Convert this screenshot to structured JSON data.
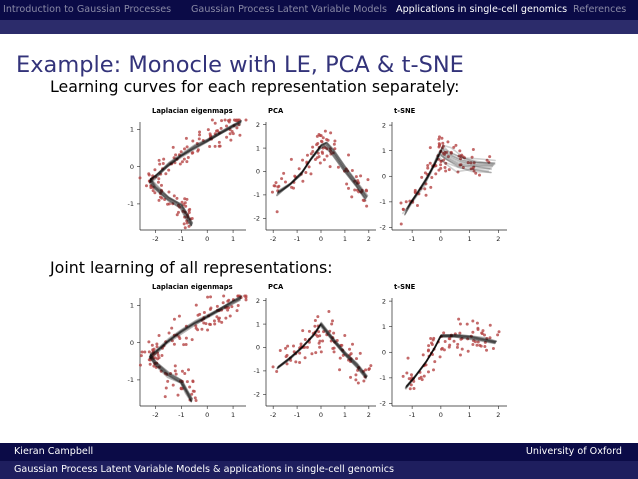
{
  "nav": {
    "items": [
      {
        "label": "Introduction to Gaussian Processes",
        "active": false
      },
      {
        "label": "Gaussian Process Latent Variable Models",
        "active": false
      },
      {
        "label": "Applications in single-cell genomics",
        "active": true
      },
      {
        "label": "References",
        "active": false
      }
    ]
  },
  "slide": {
    "title": "Example: Monocle with LE, PCA & t-SNE",
    "subtitle_1": "Learning curves for each representation separately:",
    "subtitle_2": "Joint learning of all representations:"
  },
  "footer": {
    "author": "Kieran Campbell",
    "affiliation": "University of Oxford",
    "talk_title": "Gaussian Process Latent Variable Models & applications in single-cell genomics"
  },
  "colors": {
    "nav_bg": "#0b0b47",
    "nav_inactive": "#8a8aa6",
    "nav_active": "#ffffff",
    "title": "#33337a",
    "point": "#b54545",
    "curve": "#000000"
  },
  "chart_data": [
    {
      "type": "scatter",
      "panel": "top",
      "title": "Laplacian eigenmaps",
      "x_ticks": [
        "-2",
        "-1",
        "0",
        "1"
      ],
      "y_ticks": [
        "1",
        "0",
        "-1"
      ],
      "xlim": [
        -2.6,
        1.5
      ],
      "ylim": [
        -1.7,
        1.25
      ],
      "curve": [
        [
          -2.2,
          -0.35
        ],
        [
          -2.0,
          -0.25
        ],
        [
          -1.5,
          0.05
        ],
        [
          -1.0,
          0.3
        ],
        [
          -0.5,
          0.52
        ],
        [
          0.0,
          0.7
        ],
        [
          0.5,
          0.9
        ],
        [
          1.0,
          1.1
        ],
        [
          1.3,
          1.2
        ]
      ],
      "curve2": [
        [
          -2.2,
          -0.35
        ],
        [
          -2.0,
          -0.55
        ],
        [
          -1.5,
          -0.85
        ],
        [
          -1.0,
          -1.05
        ],
        [
          -0.8,
          -1.3
        ],
        [
          -0.6,
          -1.55
        ]
      ],
      "curve_band": 0.06
    },
    {
      "type": "scatter",
      "panel": "top",
      "title": "PCA",
      "x_ticks": [
        "-2",
        "-1",
        "0",
        "1",
        "2"
      ],
      "y_ticks": [
        "2",
        "1",
        "0",
        "-1",
        "-2"
      ],
      "xlim": [
        -2.3,
        2.3
      ],
      "ylim": [
        -2.5,
        2.2
      ],
      "curve": [
        [
          -1.8,
          -0.9
        ],
        [
          -1.3,
          -0.55
        ],
        [
          -0.8,
          -0.05
        ],
        [
          -0.4,
          0.55
        ],
        [
          0.0,
          1.1
        ],
        [
          0.2,
          1.2
        ],
        [
          0.5,
          0.85
        ],
        [
          1.0,
          0.1
        ],
        [
          1.5,
          -0.55
        ],
        [
          1.9,
          -1.1
        ]
      ],
      "curve_band": 0.1
    },
    {
      "type": "scatter",
      "panel": "top",
      "title": "t-SNE",
      "x_ticks": [
        "-1",
        "0",
        "1",
        "2"
      ],
      "y_ticks": [
        "2",
        "1",
        "0",
        "-1",
        "-2"
      ],
      "xlim": [
        -1.7,
        2.3
      ],
      "ylim": [
        -2.1,
        2.2
      ],
      "curve": [
        [
          -1.2,
          -1.3
        ],
        [
          -0.9,
          -0.8
        ],
        [
          -0.5,
          -0.1
        ],
        [
          -0.2,
          0.5
        ],
        [
          0.0,
          1.0
        ],
        [
          0.2,
          0.8
        ],
        [
          0.7,
          0.55
        ],
        [
          1.2,
          0.45
        ],
        [
          1.8,
          0.4
        ]
      ],
      "curve_band": 0.25
    },
    {
      "type": "scatter",
      "panel": "bottom",
      "title": "Laplacian eigenmaps",
      "x_ticks": [
        "-2",
        "-1",
        "0",
        "1"
      ],
      "y_ticks": [
        "1",
        "0",
        "-1"
      ],
      "xlim": [
        -2.6,
        1.5
      ],
      "ylim": [
        -1.7,
        1.25
      ],
      "curve": [
        [
          -2.2,
          -0.35
        ],
        [
          -2.0,
          -0.25
        ],
        [
          -1.5,
          0.05
        ],
        [
          -1.0,
          0.3
        ],
        [
          -0.5,
          0.52
        ],
        [
          0.0,
          0.7
        ],
        [
          0.5,
          0.9
        ],
        [
          1.0,
          1.1
        ],
        [
          1.3,
          1.2
        ]
      ],
      "curve2": [
        [
          -2.2,
          -0.35
        ],
        [
          -2.0,
          -0.55
        ],
        [
          -1.5,
          -0.85
        ],
        [
          -1.0,
          -1.05
        ],
        [
          -0.8,
          -1.3
        ],
        [
          -0.6,
          -1.55
        ]
      ],
      "curve_band": 0.06
    },
    {
      "type": "scatter",
      "panel": "bottom",
      "title": "PCA",
      "x_ticks": [
        "-2",
        "-1",
        "0",
        "1",
        "2"
      ],
      "y_ticks": [
        "2",
        "1",
        "0",
        "-1",
        "-2"
      ],
      "xlim": [
        -2.3,
        2.3
      ],
      "ylim": [
        -2.5,
        2.2
      ],
      "curve": [
        [
          -1.8,
          -0.85
        ],
        [
          -1.3,
          -0.45
        ],
        [
          -0.8,
          0.0
        ],
        [
          -0.3,
          0.55
        ],
        [
          0.0,
          1.0
        ],
        [
          0.5,
          0.35
        ],
        [
          1.0,
          -0.25
        ],
        [
          1.5,
          -0.75
        ],
        [
          1.9,
          -1.25
        ]
      ],
      "curve_band": 0.06
    },
    {
      "type": "scatter",
      "panel": "bottom",
      "title": "t-SNE",
      "x_ticks": [
        "-1",
        "0",
        "1",
        "2"
      ],
      "y_ticks": [
        "2",
        "1",
        "0",
        "-1",
        "-2"
      ],
      "xlim": [
        -1.7,
        2.3
      ],
      "ylim": [
        -2.1,
        2.2
      ],
      "curve": [
        [
          -1.2,
          -1.35
        ],
        [
          -0.9,
          -0.95
        ],
        [
          -0.5,
          -0.35
        ],
        [
          -0.2,
          0.2
        ],
        [
          0.0,
          0.65
        ],
        [
          0.5,
          0.65
        ],
        [
          1.0,
          0.6
        ],
        [
          1.5,
          0.5
        ],
        [
          1.9,
          0.4
        ]
      ],
      "curve_band": 0.06
    }
  ]
}
